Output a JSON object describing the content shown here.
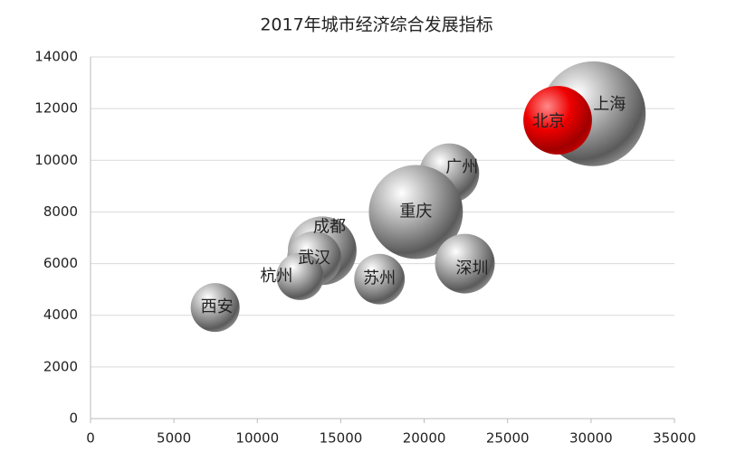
{
  "chart_data": {
    "type": "bubble",
    "title": "2017年城市经济综合发展指标",
    "categories": [
      "上海",
      "广州",
      "重庆",
      "深圳",
      "成都",
      "武汉",
      "杭州",
      "苏州",
      "西安",
      "北京"
    ],
    "x": [
      30133,
      21503,
      19500,
      22438,
      13889,
      13410,
      12556,
      17320,
      7470,
      28000
    ],
    "values": [
      11800,
      9500,
      8000,
      6000,
      6500,
      6200,
      5500,
      5400,
      4300,
      11550
    ],
    "sizes": [
      336,
      109,
      270,
      109,
      144,
      90,
      68,
      78,
      73,
      144
    ],
    "colors": [
      "gray",
      "gray",
      "gray",
      "gray",
      "gray",
      "gray",
      "gray",
      "gray",
      "gray",
      "red"
    ],
    "xlim": [
      0,
      35000
    ],
    "xticks": [
      0,
      5000,
      10000,
      15000,
      20000,
      25000,
      30000,
      35000
    ],
    "ylim": [
      0,
      14000
    ],
    "yticks": [
      0,
      2000,
      4000,
      6000,
      8000,
      10000,
      12000,
      14000
    ],
    "grid": true
  }
}
